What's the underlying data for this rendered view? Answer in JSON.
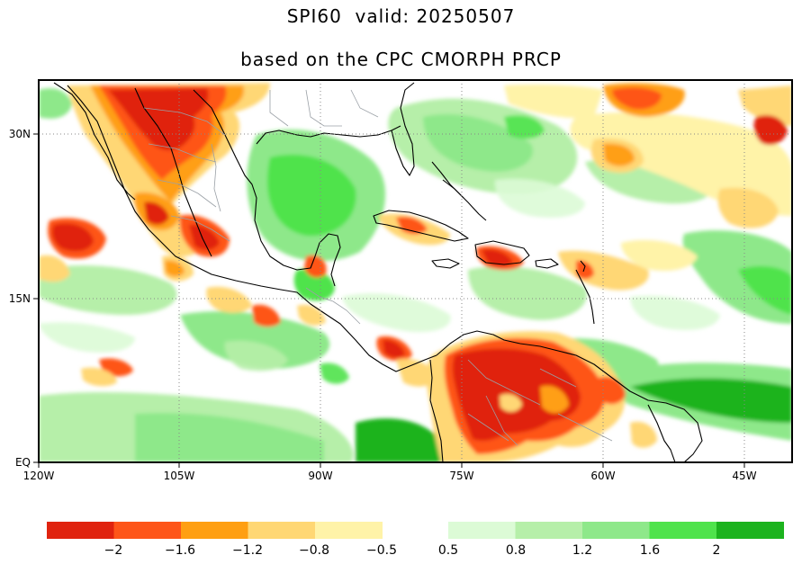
{
  "title": {
    "line1": "SPI60  valid: 20250507",
    "line2": "based on the CPC CMORPH PRCP"
  },
  "map": {
    "lon_range": [
      -120,
      -40
    ],
    "lat_range": [
      0,
      35
    ],
    "lon_ticks": [
      "120W",
      "105W",
      "90W",
      "75W",
      "60W",
      "45W"
    ],
    "lat_ticks": [
      "EQ",
      "15N",
      "30N"
    ],
    "gridlines": "dotted"
  },
  "legend": {
    "neg_colors": [
      "#e0230f",
      "#fe5519",
      "#ff9f12",
      "#ffd774",
      "#fff3a8"
    ],
    "pos_colors": [
      "#dcfbd6",
      "#b6efa9",
      "#8ee88a",
      "#4fe34c",
      "#1cb31e"
    ],
    "neg_labels": [
      "−2",
      "−1.6",
      "−1.2",
      "−0.8",
      "−0.5"
    ],
    "pos_labels": [
      "0.5",
      "0.8",
      "1.2",
      "1.6",
      "2"
    ]
  }
}
